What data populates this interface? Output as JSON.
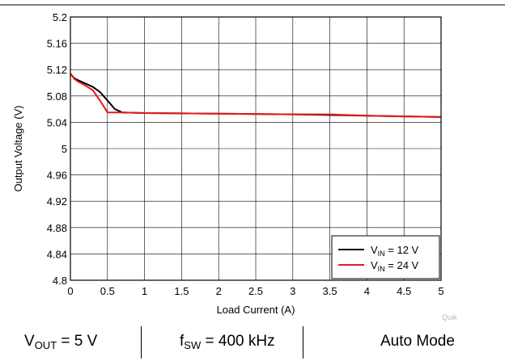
{
  "chart_data": {
    "type": "line",
    "title": "",
    "xlabel": "Load Current (A)",
    "ylabel": "Output Voltage (V)",
    "xlim": [
      0,
      5
    ],
    "ylim": [
      4.8,
      5.2
    ],
    "grid": true,
    "legend_position": "bottom-right",
    "x_ticks": [
      "0",
      "0.5",
      "1",
      "1.5",
      "2",
      "2.5",
      "3",
      "3.5",
      "4",
      "4.5",
      "5"
    ],
    "y_ticks": [
      "4.8",
      "4.84",
      "4.88",
      "4.92",
      "4.96",
      "5",
      "5.04",
      "5.08",
      "5.12",
      "5.16",
      "5.2"
    ],
    "series": [
      {
        "name_main": "V",
        "name_sub": "IN",
        "name_rest": " = 12 V",
        "color": "#000000",
        "x": [
          0,
          0.05,
          0.1,
          0.2,
          0.3,
          0.4,
          0.5,
          0.6,
          0.7,
          1,
          2,
          3,
          3.5,
          4,
          4.5,
          5
        ],
        "y": [
          5.114,
          5.107,
          5.104,
          5.099,
          5.094,
          5.086,
          5.073,
          5.06,
          5.055,
          5.054,
          5.053,
          5.052,
          5.051,
          5.05,
          5.049,
          5.048
        ]
      },
      {
        "name_main": "V",
        "name_sub": "IN",
        "name_rest": " = 24 V",
        "color": "#e41a1c",
        "x": [
          0,
          0.05,
          0.1,
          0.2,
          0.3,
          0.4,
          0.5,
          0.7,
          1,
          2,
          3,
          3.5,
          4,
          4.5,
          5
        ],
        "y": [
          5.114,
          5.106,
          5.102,
          5.096,
          5.089,
          5.073,
          5.055,
          5.055,
          5.054,
          5.053,
          5.052,
          5.052,
          5.05,
          5.049,
          5.048
        ]
      }
    ]
  },
  "watermark": "Quik",
  "conditions": {
    "vout_main": "V",
    "vout_sub": "OUT",
    "vout_rest": " = 5 V",
    "fsw_main": "f",
    "fsw_sub": "SW",
    "fsw_rest": " = 400 kHz",
    "mode": "Auto Mode"
  }
}
